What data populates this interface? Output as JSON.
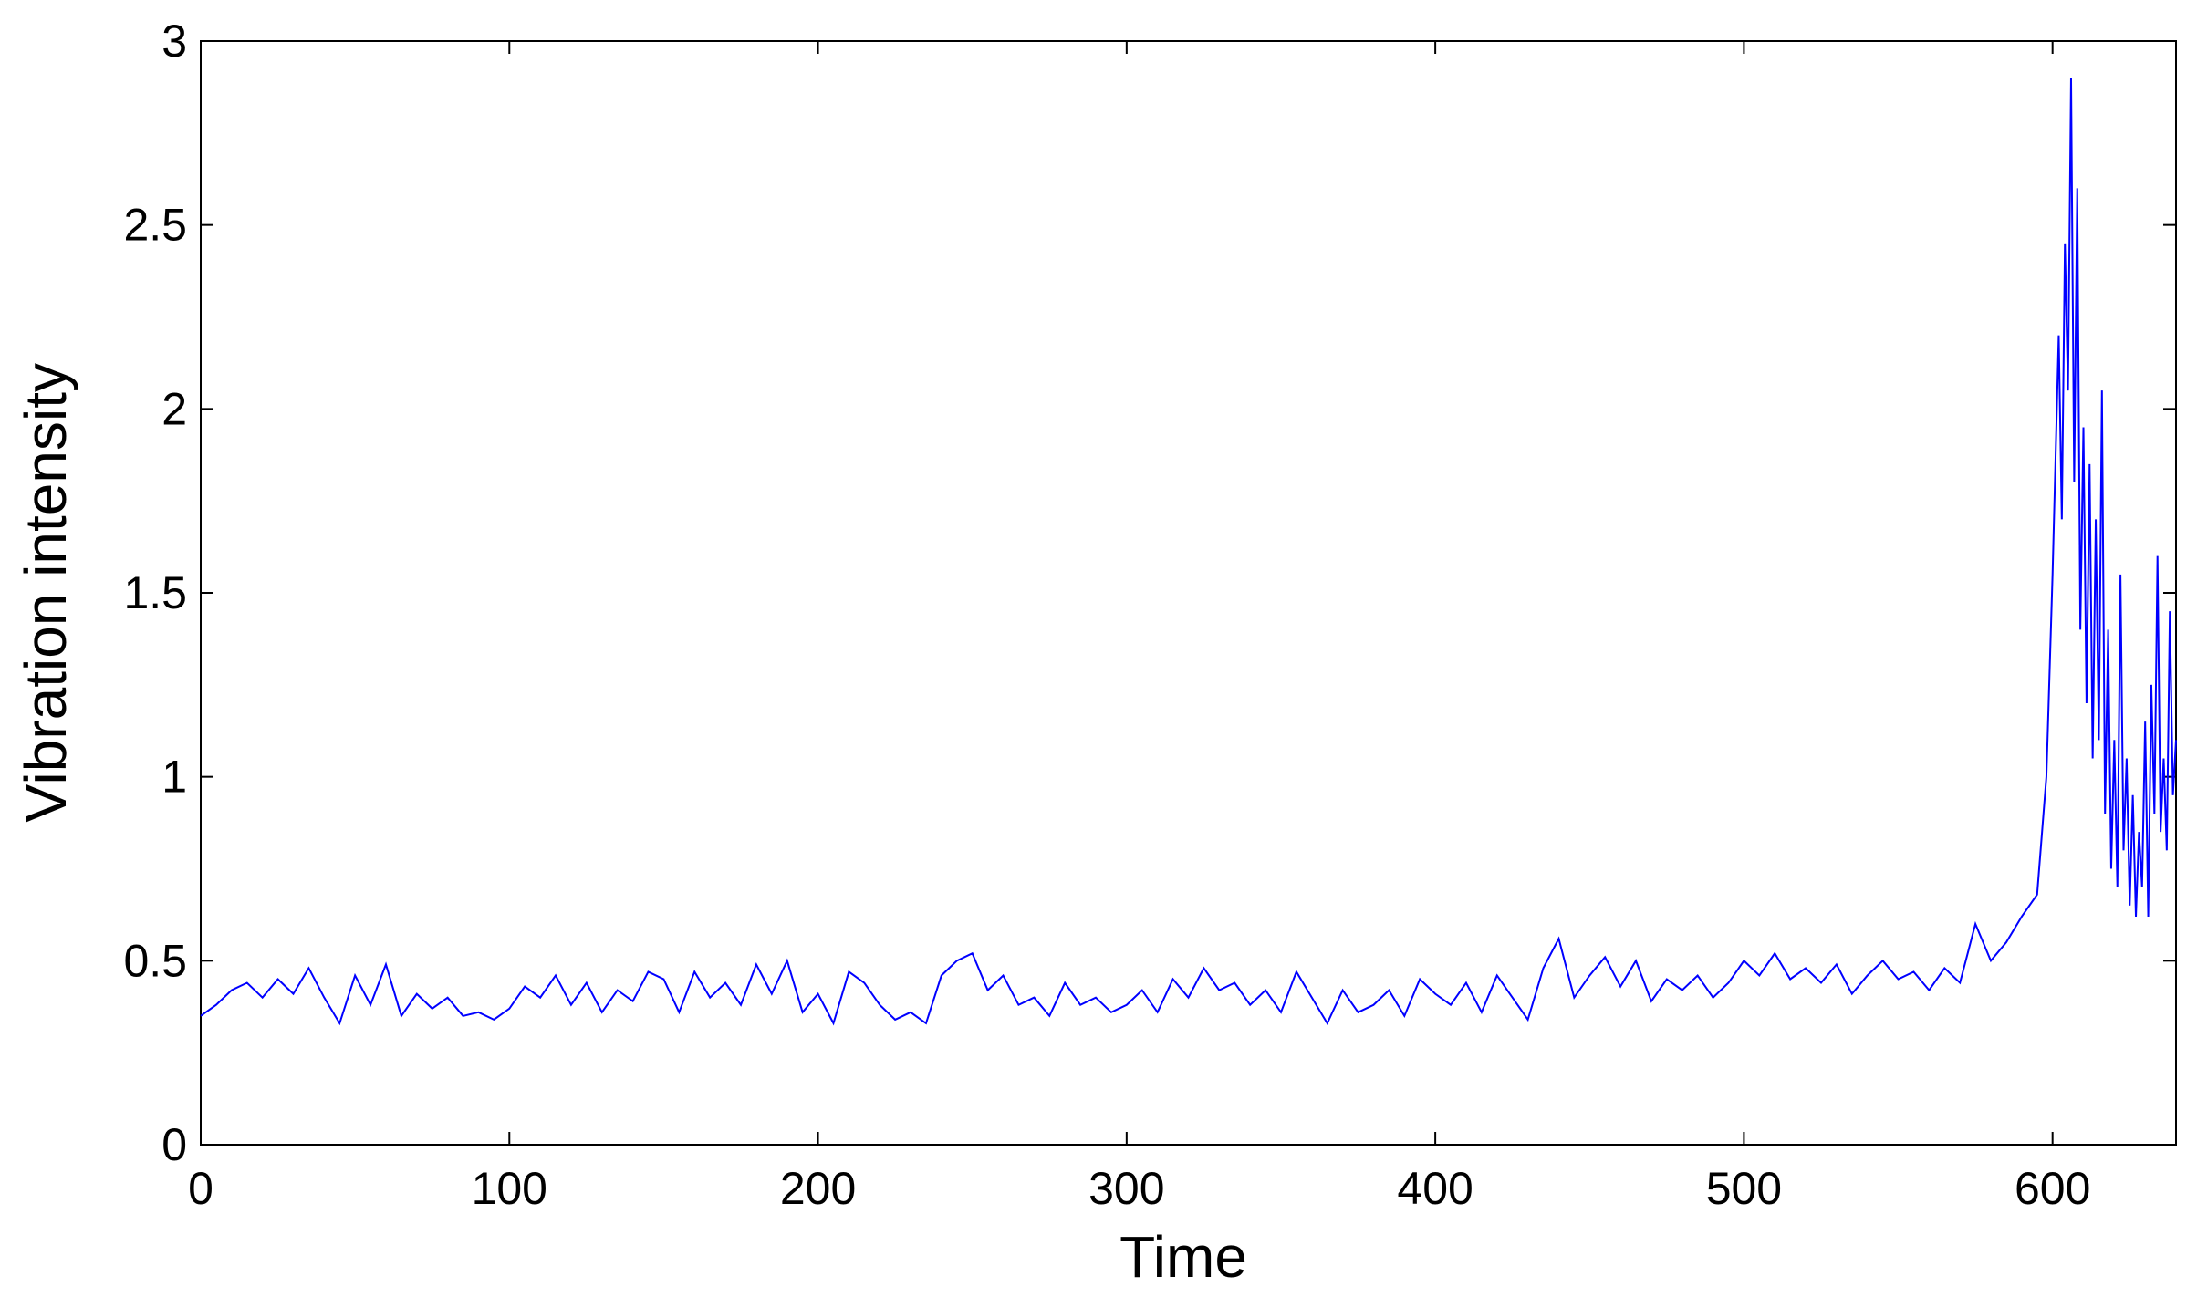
{
  "chart_data": {
    "type": "line",
    "title": "",
    "xlabel": "Time",
    "ylabel": "Vibration intensity",
    "xlim": [
      0,
      640
    ],
    "ylim": [
      0,
      3
    ],
    "xticks": [
      0,
      100,
      200,
      300,
      400,
      500,
      600
    ],
    "yticks": [
      0,
      0.5,
      1,
      1.5,
      2,
      2.5,
      3
    ],
    "xtick_labels": [
      "0",
      "100",
      "200",
      "300",
      "400",
      "500",
      "600"
    ],
    "ytick_labels": [
      "0",
      "0.5",
      "1",
      "1.5",
      "2",
      "2.5",
      "3"
    ],
    "grid": false,
    "series": [
      {
        "color": "#0000ff",
        "x": [
          0,
          5,
          10,
          15,
          20,
          25,
          30,
          35,
          40,
          45,
          50,
          55,
          60,
          65,
          70,
          75,
          80,
          85,
          90,
          95,
          100,
          105,
          110,
          115,
          120,
          125,
          130,
          135,
          140,
          145,
          150,
          155,
          160,
          165,
          170,
          175,
          180,
          185,
          190,
          195,
          200,
          205,
          210,
          215,
          220,
          225,
          230,
          235,
          240,
          245,
          250,
          255,
          260,
          265,
          270,
          275,
          280,
          285,
          290,
          295,
          300,
          305,
          310,
          315,
          320,
          325,
          330,
          335,
          340,
          345,
          350,
          355,
          360,
          365,
          370,
          375,
          380,
          385,
          390,
          395,
          400,
          405,
          410,
          415,
          420,
          425,
          430,
          435,
          440,
          445,
          450,
          455,
          460,
          465,
          470,
          475,
          480,
          485,
          490,
          495,
          500,
          505,
          510,
          515,
          520,
          525,
          530,
          535,
          540,
          545,
          550,
          555,
          560,
          565,
          570,
          575,
          580,
          585,
          590,
          595,
          598,
          600,
          602,
          603,
          604,
          605,
          606,
          607,
          608,
          609,
          610,
          611,
          612,
          613,
          614,
          615,
          616,
          617,
          618,
          619,
          620,
          621,
          622,
          623,
          624,
          625,
          626,
          627,
          628,
          629,
          630,
          631,
          632,
          633,
          634,
          635,
          636,
          637,
          638,
          639,
          640
        ],
        "y": [
          0.35,
          0.38,
          0.42,
          0.44,
          0.4,
          0.45,
          0.41,
          0.48,
          0.4,
          0.33,
          0.46,
          0.38,
          0.49,
          0.35,
          0.41,
          0.37,
          0.4,
          0.35,
          0.36,
          0.34,
          0.37,
          0.43,
          0.4,
          0.46,
          0.38,
          0.44,
          0.36,
          0.42,
          0.39,
          0.47,
          0.45,
          0.36,
          0.47,
          0.4,
          0.44,
          0.38,
          0.49,
          0.41,
          0.5,
          0.36,
          0.41,
          0.33,
          0.47,
          0.44,
          0.38,
          0.34,
          0.36,
          0.33,
          0.46,
          0.5,
          0.52,
          0.42,
          0.46,
          0.38,
          0.4,
          0.35,
          0.44,
          0.38,
          0.4,
          0.36,
          0.38,
          0.42,
          0.36,
          0.45,
          0.4,
          0.48,
          0.42,
          0.44,
          0.38,
          0.42,
          0.36,
          0.47,
          0.4,
          0.33,
          0.42,
          0.36,
          0.38,
          0.42,
          0.35,
          0.45,
          0.41,
          0.38,
          0.44,
          0.36,
          0.46,
          0.4,
          0.34,
          0.48,
          0.56,
          0.4,
          0.46,
          0.51,
          0.43,
          0.5,
          0.39,
          0.45,
          0.42,
          0.46,
          0.4,
          0.44,
          0.5,
          0.46,
          0.52,
          0.45,
          0.48,
          0.44,
          0.49,
          0.41,
          0.46,
          0.5,
          0.45,
          0.47,
          0.42,
          0.48,
          0.44,
          0.6,
          0.5,
          0.55,
          0.62,
          0.68,
          1.0,
          1.55,
          2.2,
          1.7,
          2.45,
          2.05,
          2.9,
          1.8,
          2.6,
          1.4,
          1.95,
          1.2,
          1.85,
          1.05,
          1.7,
          1.1,
          2.05,
          0.9,
          1.4,
          0.75,
          1.1,
          0.7,
          1.55,
          0.8,
          1.05,
          0.65,
          0.95,
          0.62,
          0.85,
          0.7,
          1.15,
          0.62,
          1.25,
          0.9,
          1.6,
          0.85,
          1.05,
          0.8,
          1.45,
          0.95,
          1.1
        ]
      }
    ]
  }
}
